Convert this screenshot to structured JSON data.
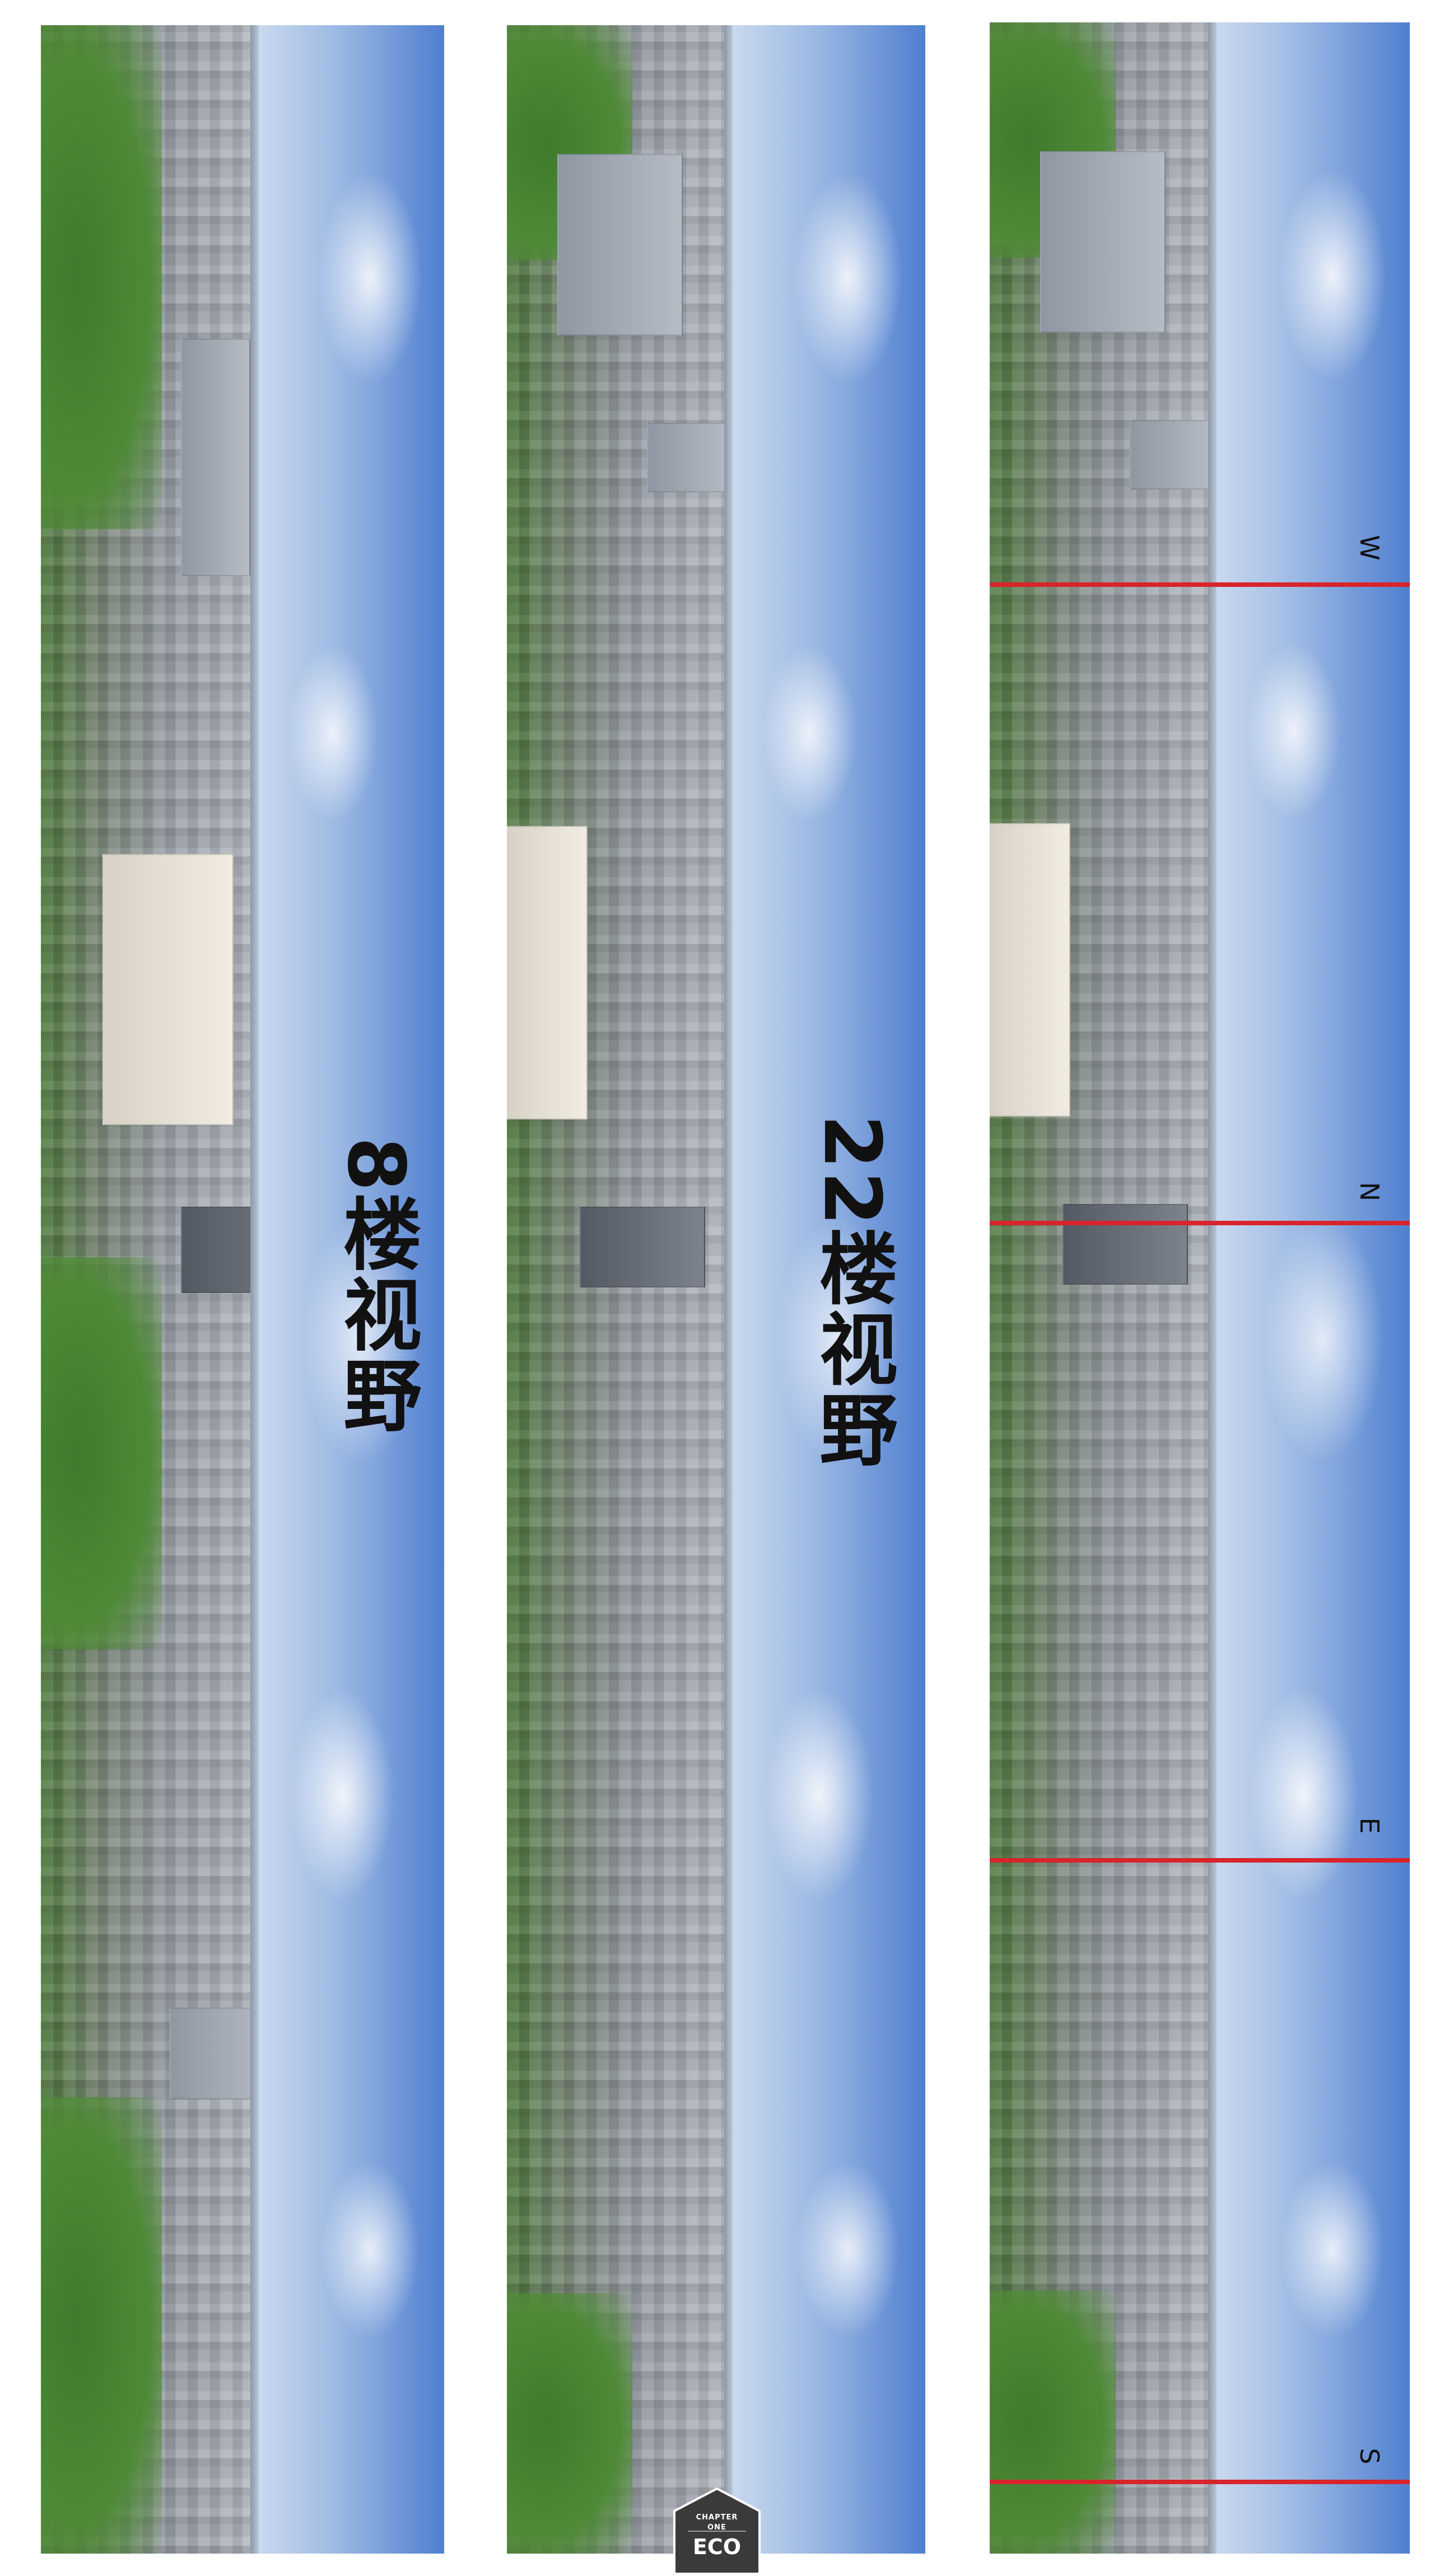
{
  "panels": {
    "floor8": {
      "title": "8楼视野"
    },
    "floor22": {
      "title": "22楼视野"
    },
    "compass": {
      "directions": [
        "W",
        "N",
        "E",
        "S"
      ],
      "line_color": "#d8242a"
    }
  },
  "logo": {
    "line1": "CHAPTER",
    "line2": "ONE",
    "line3": "ECO"
  },
  "colors": {
    "sky": "#5f86c8",
    "label": "#111111"
  }
}
